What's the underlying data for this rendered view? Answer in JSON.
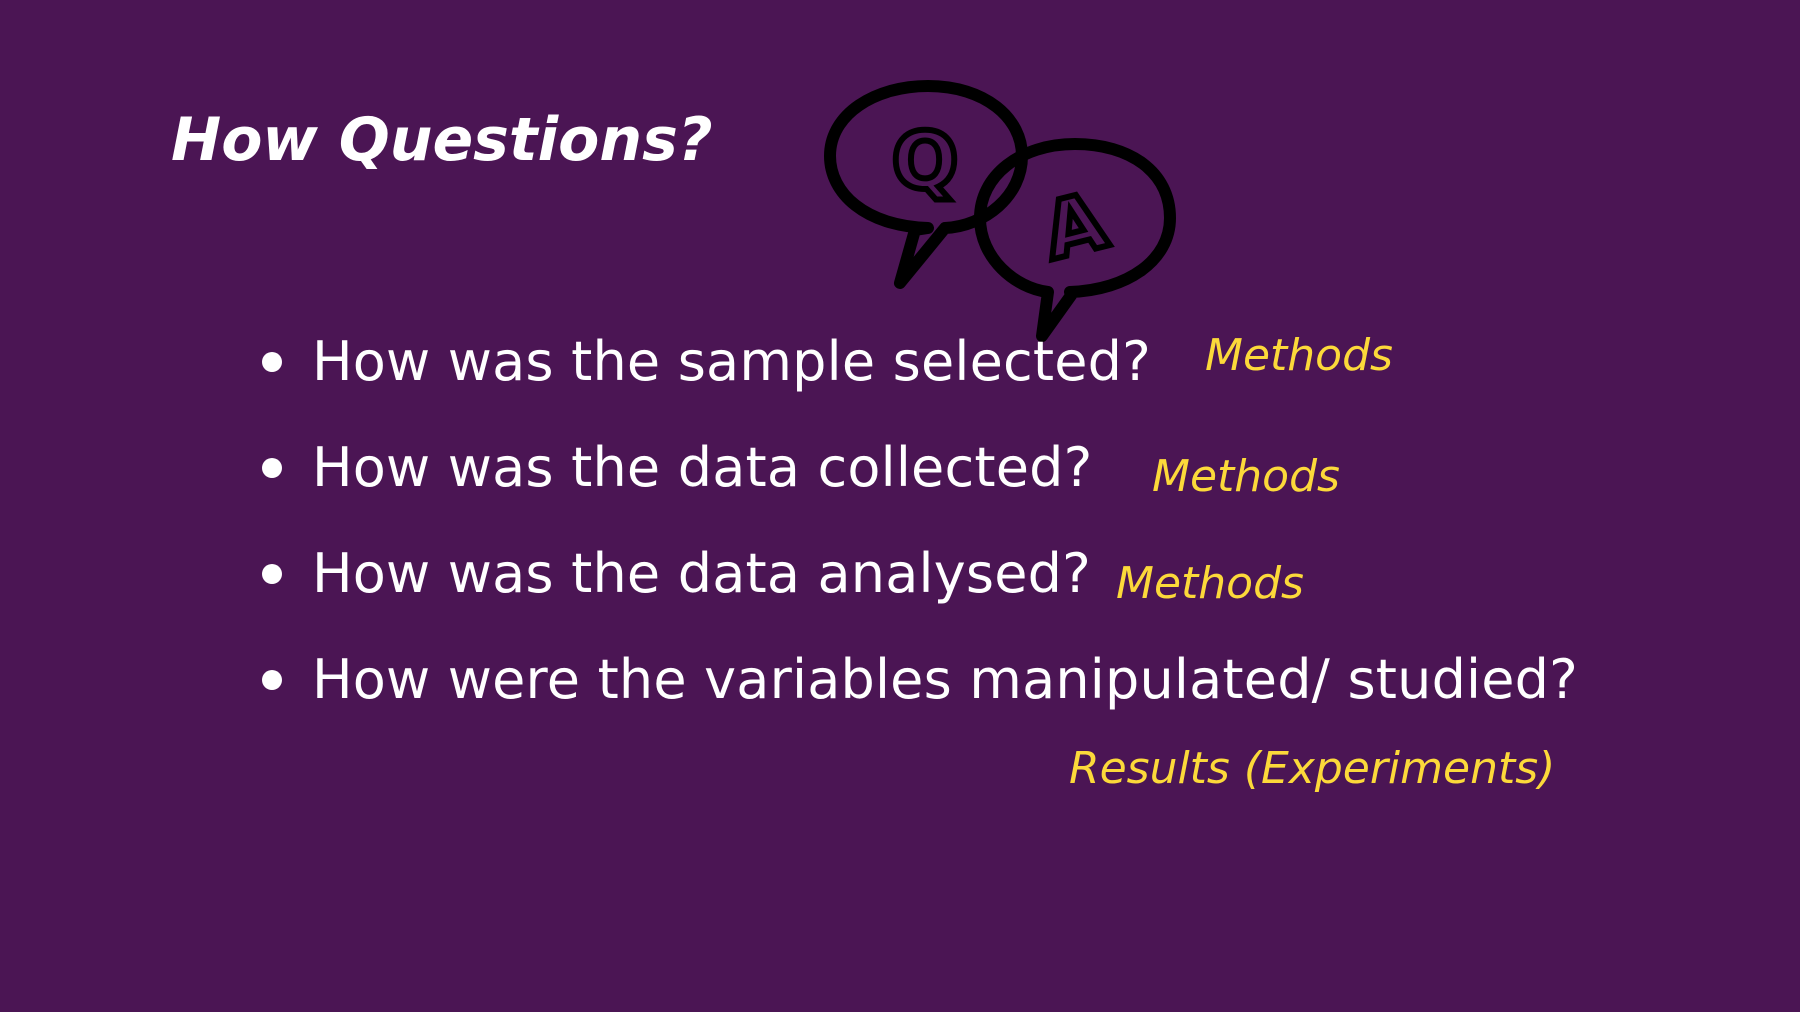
{
  "slide": {
    "title": "How Questions?",
    "icon": "question-answer-speech-bubbles-icon",
    "colors": {
      "background": "#4b1554",
      "text": "#ffffff",
      "accent": "#fcd93a",
      "icon": "#000000"
    },
    "bullets": [
      {
        "text": "How was the sample selected?",
        "tag": "Methods"
      },
      {
        "text": "How was the data collected?",
        "tag": "Methods"
      },
      {
        "text": "How was the data analysed?",
        "tag": "Methods"
      },
      {
        "text": "How were the variables manipulated/ studied?",
        "tag": "Results (Experiments)"
      }
    ],
    "icon_letters": {
      "question": "Q",
      "answer": "A"
    }
  }
}
